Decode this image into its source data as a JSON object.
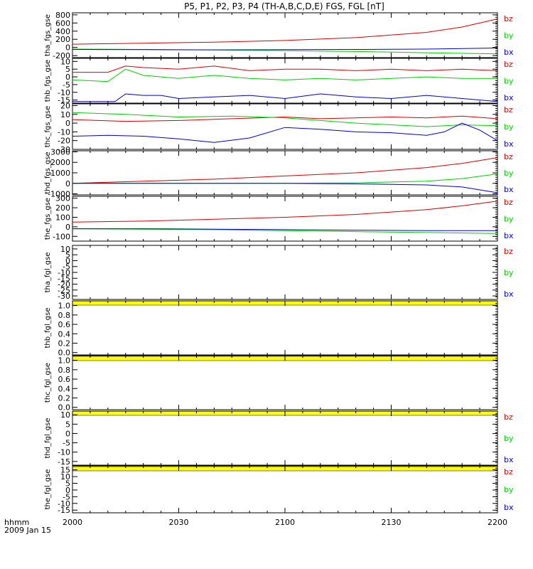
{
  "title": "P5, P1, P2, P3, P4 (TH-A,B,C,D,E) FGS, FGL [nT]",
  "time_axis": {
    "ticks": [
      "2000",
      "2030",
      "2100",
      "2130",
      "2200"
    ],
    "label_line1": "hhmm",
    "label_line2": "2009 Jan 15",
    "start_minute": 0,
    "end_minute": 120
  },
  "colors": {
    "bz": "#d40000",
    "by": "#00d000",
    "bx": "#0000c8",
    "no_data_bar": "#ffff00"
  },
  "chart_data": [
    {
      "type": "line",
      "ylabel": "tha_fgs_gse",
      "ylim": [
        -250,
        850
      ],
      "yticks": [
        "800",
        "600",
        "400",
        "200",
        "0",
        "-200"
      ],
      "ytick_values": [
        800,
        600,
        400,
        200,
        0,
        -200
      ],
      "legend": [
        "bz",
        "by",
        "bx"
      ],
      "series": [
        {
          "name": "bz",
          "x": [
            0,
            20,
            40,
            60,
            80,
            100,
            110,
            120
          ],
          "values": [
            80,
            105,
            130,
            170,
            240,
            370,
            500,
            700
          ]
        },
        {
          "name": "by",
          "x": [
            0,
            20,
            40,
            60,
            80,
            100,
            120
          ],
          "values": [
            -40,
            -50,
            -60,
            -80,
            -100,
            -130,
            -160
          ]
        },
        {
          "name": "bx",
          "x": [
            0,
            20,
            40,
            60,
            80,
            100,
            120
          ],
          "values": [
            -50,
            -55,
            -60,
            -55,
            -50,
            -40,
            -15
          ]
        }
      ],
      "no_data_bar": false
    },
    {
      "type": "line",
      "ylabel": "thb_fgs_gse",
      "ylim": [
        -17,
        12
      ],
      "yticks": [
        "10",
        "5",
        "0",
        "-5",
        "-10",
        "-15"
      ],
      "ytick_values": [
        10,
        5,
        0,
        -5,
        -10,
        -15
      ],
      "legend": [
        "bz",
        "by",
        "bx"
      ],
      "series": [
        {
          "name": "bz",
          "x": [
            0,
            10,
            15,
            20,
            30,
            40,
            50,
            60,
            70,
            80,
            90,
            100,
            110,
            120
          ],
          "values": [
            3,
            3,
            7,
            6,
            5,
            7,
            4,
            5,
            5,
            4,
            5,
            4,
            5,
            4
          ]
        },
        {
          "name": "by",
          "x": [
            0,
            10,
            15,
            20,
            30,
            40,
            50,
            60,
            70,
            80,
            90,
            100,
            110,
            120
          ],
          "values": [
            -2,
            -3,
            5,
            1,
            -1,
            1,
            -1,
            -2,
            -1,
            -2,
            -1,
            0,
            -1,
            -1
          ]
        },
        {
          "name": "bx",
          "x": [
            0,
            12,
            15,
            20,
            25,
            30,
            40,
            50,
            60,
            70,
            80,
            90,
            100,
            110,
            120
          ],
          "values": [
            -16,
            -16,
            -11,
            -12,
            -12,
            -14,
            -13,
            -12,
            -14,
            -11,
            -13,
            -14,
            -12,
            -14,
            -16
          ]
        }
      ],
      "no_data_bar": false
    },
    {
      "type": "line",
      "ylabel": "thc_fgs_gse",
      "ylim": [
        -30,
        22
      ],
      "yticks": [
        "20",
        "10",
        "0",
        "-10",
        "-20",
        "-30"
      ],
      "ytick_values": [
        20,
        10,
        0,
        -10,
        -20,
        -30
      ],
      "legend": [
        "bz",
        "by",
        "bx"
      ],
      "series": [
        {
          "name": "bz",
          "x": [
            0,
            15,
            30,
            45,
            60,
            70,
            80,
            90,
            100,
            110,
            120
          ],
          "values": [
            4,
            2,
            3,
            5,
            7,
            5,
            6,
            7,
            6,
            8,
            5
          ]
        },
        {
          "name": "by",
          "x": [
            0,
            15,
            30,
            45,
            60,
            70,
            80,
            90,
            100,
            110,
            120
          ],
          "values": [
            12,
            10,
            7,
            8,
            6,
            3,
            0,
            -2,
            -4,
            -2,
            -3
          ]
        },
        {
          "name": "bx",
          "x": [
            0,
            10,
            20,
            30,
            40,
            50,
            60,
            70,
            80,
            90,
            100,
            105,
            110,
            115,
            120
          ],
          "values": [
            -15,
            -14,
            -15,
            -18,
            -22,
            -17,
            -5,
            -7,
            -10,
            -11,
            -14,
            -10,
            0,
            -8,
            -20
          ]
        }
      ],
      "no_data_bar": false
    },
    {
      "type": "line",
      "ylabel": "thd_fgs_gse",
      "ylim": [
        -1100,
        3100
      ],
      "yticks": [
        "3000",
        "2000",
        "1000",
        "0",
        "-1000"
      ],
      "ytick_values": [
        3000,
        2000,
        1000,
        0,
        -1000
      ],
      "legend": [
        "bz",
        "by",
        "bx"
      ],
      "series": [
        {
          "name": "bz",
          "x": [
            0,
            20,
            40,
            60,
            80,
            100,
            110,
            120
          ],
          "values": [
            0,
            200,
            400,
            700,
            1000,
            1500,
            1900,
            2450
          ]
        },
        {
          "name": "by",
          "x": [
            0,
            20,
            40,
            60,
            80,
            100,
            110,
            120
          ],
          "values": [
            0,
            0,
            0,
            0,
            50,
            200,
            450,
            900
          ]
        },
        {
          "name": "bx",
          "x": [
            0,
            20,
            40,
            60,
            80,
            100,
            110,
            120
          ],
          "values": [
            0,
            0,
            0,
            0,
            -50,
            -150,
            -350,
            -900
          ]
        }
      ],
      "no_data_bar": false
    },
    {
      "type": "line",
      "ylabel": "the_fgs_gse",
      "ylim": [
        -150,
        320
      ],
      "yticks": [
        "300",
        "200",
        "100",
        "0",
        "-100"
      ],
      "ytick_values": [
        300,
        200,
        100,
        0,
        -100
      ],
      "legend": [
        "bz",
        "by",
        "bx"
      ],
      "series": [
        {
          "name": "bz",
          "x": [
            0,
            20,
            40,
            60,
            80,
            100,
            110,
            120
          ],
          "values": [
            50,
            60,
            80,
            100,
            130,
            180,
            220,
            270
          ]
        },
        {
          "name": "by",
          "x": [
            0,
            20,
            40,
            60,
            80,
            100,
            120
          ],
          "values": [
            -20,
            -25,
            -30,
            -40,
            -50,
            -60,
            -70
          ]
        },
        {
          "name": "bx",
          "x": [
            0,
            20,
            40,
            60,
            80,
            100,
            120
          ],
          "values": [
            -20,
            -20,
            -25,
            -30,
            -35,
            -40,
            -40
          ]
        }
      ],
      "no_data_bar": false
    },
    {
      "type": "line",
      "ylabel": "tha_fgl_gse",
      "ylim": [
        -33,
        13
      ],
      "yticks": [
        "10",
        "5",
        "0",
        "-5",
        "-10",
        "-15",
        "-20",
        "-25",
        "-30"
      ],
      "ytick_values": [
        10,
        5,
        0,
        -5,
        -10,
        -15,
        -20,
        -25,
        -30
      ],
      "legend": [
        "bz",
        "by",
        "bx"
      ],
      "series": [],
      "no_data_bar": true
    },
    {
      "type": "line",
      "ylabel": "thb_fgl_gse",
      "ylim": [
        -0.05,
        1.1
      ],
      "yticks": [
        "1.0",
        "0.8",
        "0.6",
        "0.4",
        "0.2",
        "0.0"
      ],
      "ytick_values": [
        1.0,
        0.8,
        0.6,
        0.4,
        0.2,
        0.0
      ],
      "legend": [],
      "series": [],
      "no_data_bar": true
    },
    {
      "type": "line",
      "ylabel": "thc_fgl_gse",
      "ylim": [
        -0.05,
        1.1
      ],
      "yticks": [
        "1.0",
        "0.8",
        "0.6",
        "0.4",
        "0.2",
        "0.0"
      ],
      "ytick_values": [
        1.0,
        0.8,
        0.6,
        0.4,
        0.2,
        0.0
      ],
      "legend": [],
      "series": [],
      "no_data_bar": true
    },
    {
      "type": "line",
      "ylabel": "thd_fgl_gse",
      "ylim": [
        -17,
        12
      ],
      "yticks": [
        "10",
        "5",
        "0",
        "-5",
        "-10",
        "-15"
      ],
      "ytick_values": [
        10,
        5,
        0,
        -5,
        -10,
        -15
      ],
      "legend": [
        "bz",
        "by",
        "bx"
      ],
      "series": [],
      "no_data_bar": true
    },
    {
      "type": "line",
      "ylabel": "the_fgl_gse",
      "ylim": [
        -17,
        18
      ],
      "yticks": [
        "15",
        "10",
        "5",
        "0",
        "-5",
        "-10",
        "-15"
      ],
      "ytick_values": [
        15,
        10,
        5,
        0,
        -5,
        -10,
        -15
      ],
      "legend": [
        "bz",
        "by",
        "bx"
      ],
      "series": [],
      "no_data_bar": false
    }
  ]
}
